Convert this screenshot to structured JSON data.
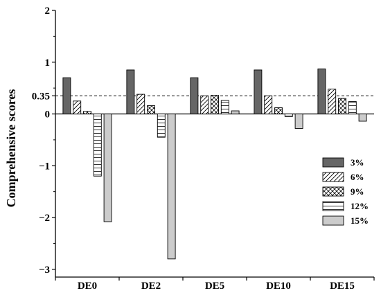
{
  "chart_data": {
    "type": "bar",
    "categories": [
      "DE0",
      "DE2",
      "DE5",
      "DE10",
      "DE15"
    ],
    "series": [
      {
        "name": "3%",
        "values": [
          0.7,
          0.85,
          0.7,
          0.85,
          0.87
        ],
        "color": "#666666",
        "pattern": "solid"
      },
      {
        "name": "6%",
        "values": [
          0.25,
          0.38,
          0.35,
          0.35,
          0.48
        ],
        "color": "#ffffff",
        "pattern": "diagonal"
      },
      {
        "name": "9%",
        "values": [
          0.05,
          0.16,
          0.36,
          0.12,
          0.3
        ],
        "color": "#ffffff",
        "pattern": "crosshatch"
      },
      {
        "name": "12%",
        "values": [
          -1.2,
          -0.45,
          0.26,
          -0.05,
          0.24
        ],
        "color": "#ffffff",
        "pattern": "horizontal"
      },
      {
        "name": "15%",
        "values": [
          -2.08,
          -2.8,
          0.06,
          -0.28,
          -0.14
        ],
        "color": "#cccccc",
        "pattern": "solid"
      }
    ],
    "ylabel": "Comprehensive scores",
    "xlabel": "",
    "ylim": [
      -3.15,
      2.0
    ],
    "yticks": [
      {
        "value": 2,
        "label": "2"
      },
      {
        "value": 1,
        "label": "1"
      },
      {
        "value": 0.35,
        "label": "0.35"
      },
      {
        "value": 0,
        "label": "0"
      },
      {
        "value": -1,
        "label": "−1"
      },
      {
        "value": -2,
        "label": "−2"
      },
      {
        "value": -3,
        "label": "−3"
      }
    ],
    "reference_line": {
      "value": 0.35,
      "style": "dashed"
    },
    "grid": false,
    "legend_position": "right"
  }
}
